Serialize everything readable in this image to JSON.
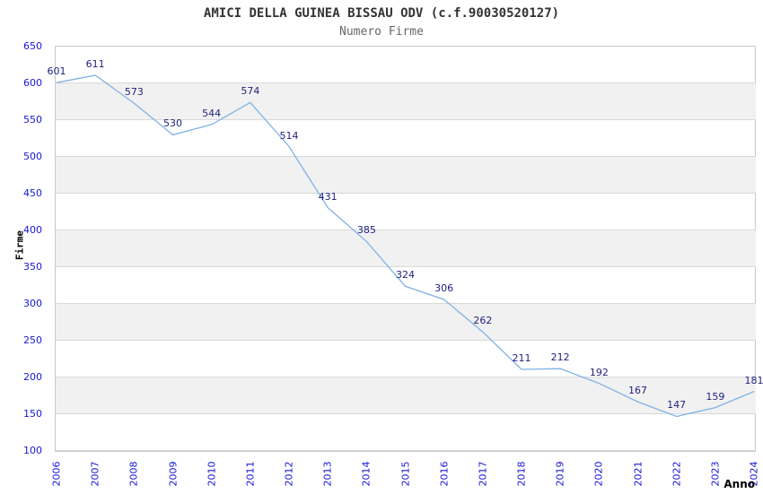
{
  "chart_data": {
    "type": "line",
    "title": "AMICI DELLA GUINEA BISSAU ODV (c.f.90030520127)",
    "subtitle": "Numero Firme",
    "xlabel": "Anno",
    "ylabel": "Firme",
    "x": [
      "2006",
      "2007",
      "2008",
      "2009",
      "2010",
      "2011",
      "2012",
      "2013",
      "2014",
      "2015",
      "2016",
      "2017",
      "2018",
      "2019",
      "2020",
      "2021",
      "2022",
      "2023",
      "2024"
    ],
    "series": [
      {
        "name": "Numero Firme",
        "values": [
          601,
          611,
          573,
          530,
          544,
          574,
          514,
          431,
          385,
          324,
          306,
          262,
          211,
          212,
          192,
          167,
          147,
          159,
          181
        ]
      }
    ],
    "ylim": [
      100,
      650
    ],
    "ytick_step": 50,
    "y_ticks": [
      650,
      600,
      550,
      500,
      450,
      400,
      350,
      300,
      250,
      200,
      150,
      100
    ],
    "grid": "horizontal, alternating shaded bands",
    "legend_position": "none",
    "data_labels_visible": true,
    "colors": {
      "line": "#7FB2E6",
      "point_label": "#1F1F7E",
      "tick_label": "#1717D2",
      "band_gray": "#F1F1F1",
      "gridline": "#D9D9D9",
      "frame": "#C9C9C9",
      "title": "#333333",
      "subtitle": "#666666",
      "axis_title": "#000000",
      "background": "#FFFFFF"
    }
  }
}
